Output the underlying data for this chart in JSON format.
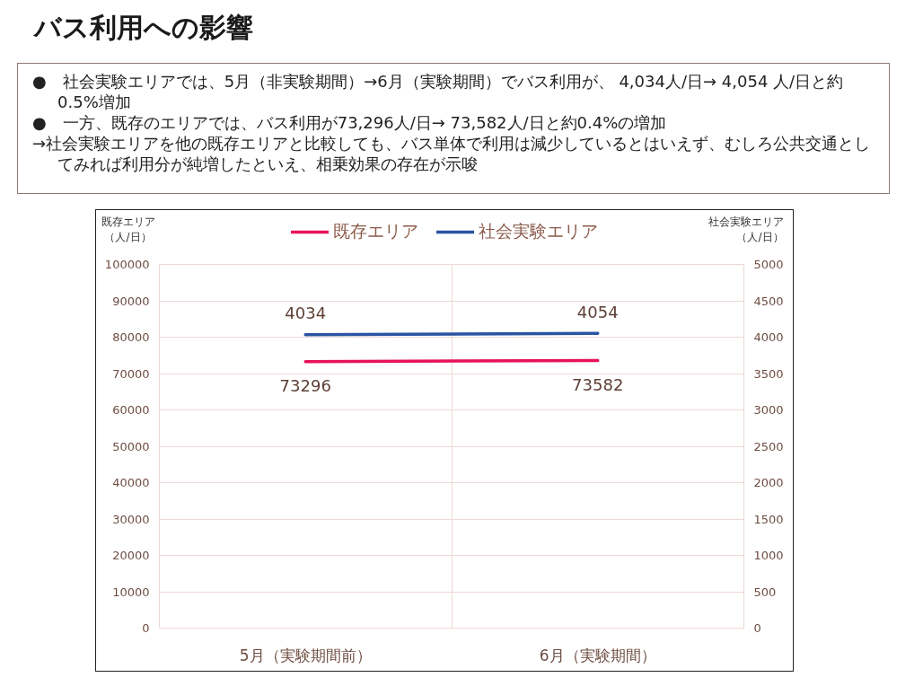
{
  "chart_data": {
    "type": "line",
    "title": "バス利用への影響",
    "annotations": [
      "●　社会実験エリアでは、5月（非実験期間）→6月（実験期間）でバス利用が、 4,034人/日→ 4,054 人/日と約0.5%増加",
      "●　一方、既存のエリアでは、バス利用が73,296人/日→ 73,582人/日と約0.4%の増加",
      "→社会実験エリアを他の既存エリアと比較しても、バス単体で利用は減少しているとはいえず、むしろ公共交通としてみれば利用分が純増したといえ、相乗効果の存在が示唆"
    ],
    "categories": [
      "5月（実験期間前）",
      "6月（実験期間）"
    ],
    "ylabel": "既存エリア（人/日）",
    "y2label": "社会実験エリア（人/日）",
    "series": [
      {
        "name": "既存エリア",
        "color": "#e6135b",
        "values": [
          73296,
          73582
        ]
      },
      {
        "name": "社会実験エリア",
        "color": "#2a53a1",
        "values": [
          4034,
          4054
        ],
        "axis": "y2"
      }
    ],
    "ylim": [
      0,
      100000
    ],
    "yticks": [
      0,
      10000,
      20000,
      30000,
      40000,
      50000,
      60000,
      70000,
      80000,
      90000,
      100000
    ],
    "y2lim": [
      0,
      5000
    ],
    "y2ticks": [
      0,
      500,
      1000,
      1500,
      2000,
      2500,
      3000,
      3500,
      4000,
      4500,
      5000
    ],
    "grid": true,
    "legend": "top",
    "data_labels": true
  }
}
